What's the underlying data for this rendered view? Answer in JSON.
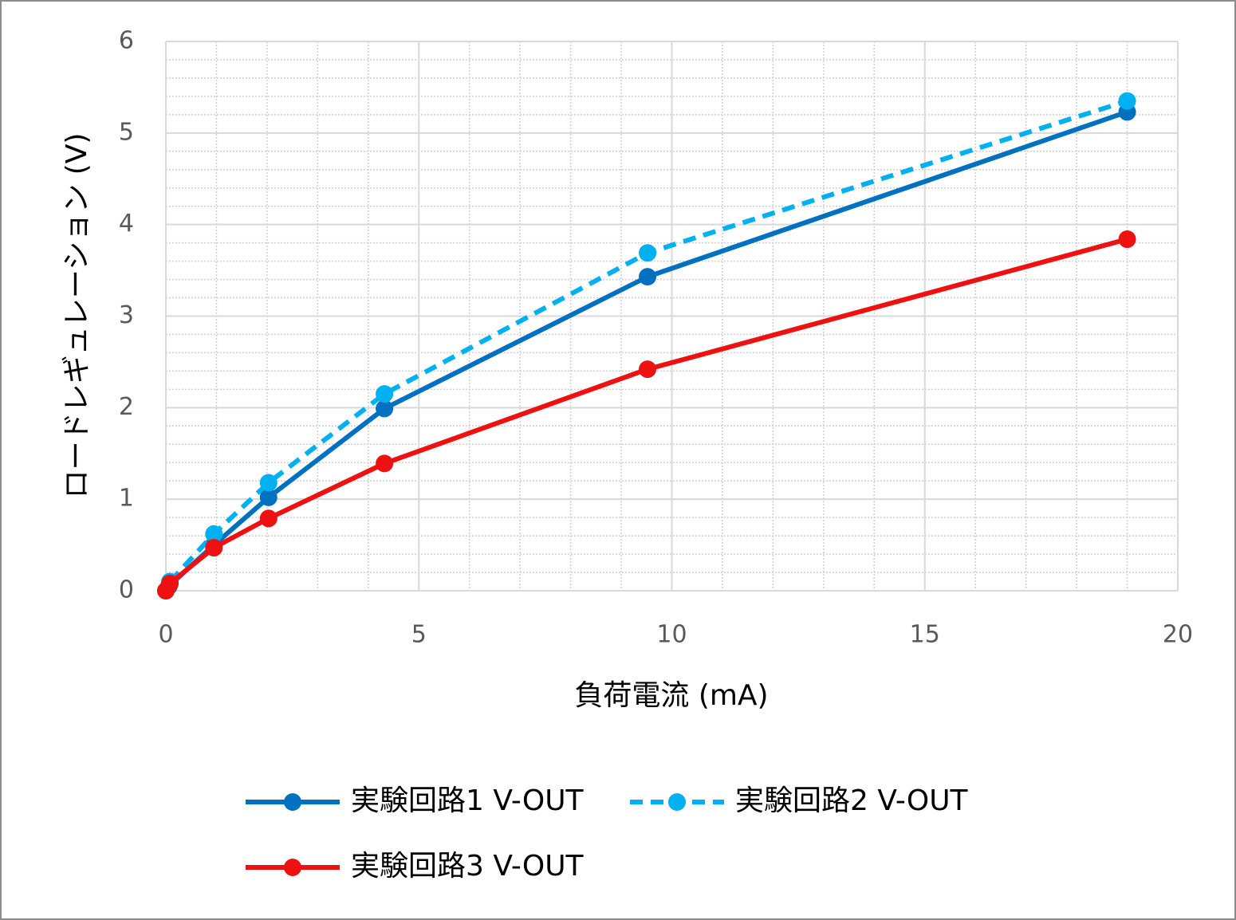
{
  "chart_data": {
    "type": "line",
    "xlabel": "負荷電流 (mA)",
    "ylabel": "ロードレギュレーション (V)",
    "xlim": [
      0,
      20
    ],
    "xticks": [
      0,
      5,
      10,
      15,
      20
    ],
    "ylim": [
      0,
      6
    ],
    "yticks": [
      0,
      1,
      2,
      3,
      4,
      5,
      6
    ],
    "grid": true,
    "minor_grid": true,
    "xminor_step": 1,
    "yminor_step": 0.2,
    "legend": "bottom",
    "series": [
      {
        "name": "実験回路1 V-OUT",
        "color": "#0070c0",
        "dash": "solid",
        "x": [
          0,
          0.06,
          0.95,
          2.03,
          4.32,
          9.52,
          19.0
        ],
        "values": [
          0,
          0.05,
          0.5,
          1.02,
          1.99,
          3.43,
          5.23
        ]
      },
      {
        "name": "実験回路2 V-OUT",
        "color": "#00b0f0",
        "dash": "dashed",
        "x": [
          0.08,
          0.95,
          2.03,
          4.32,
          9.52,
          19.0
        ],
        "values": [
          0.1,
          0.62,
          1.18,
          2.15,
          3.69,
          5.35
        ]
      },
      {
        "name": "実験回路3 V-OUT",
        "color": "#ee1111",
        "dash": "solid",
        "x": [
          0,
          0.08,
          0.95,
          2.03,
          4.32,
          9.52,
          19.0
        ],
        "values": [
          0,
          0.08,
          0.47,
          0.79,
          1.39,
          2.42,
          3.84
        ]
      }
    ]
  }
}
